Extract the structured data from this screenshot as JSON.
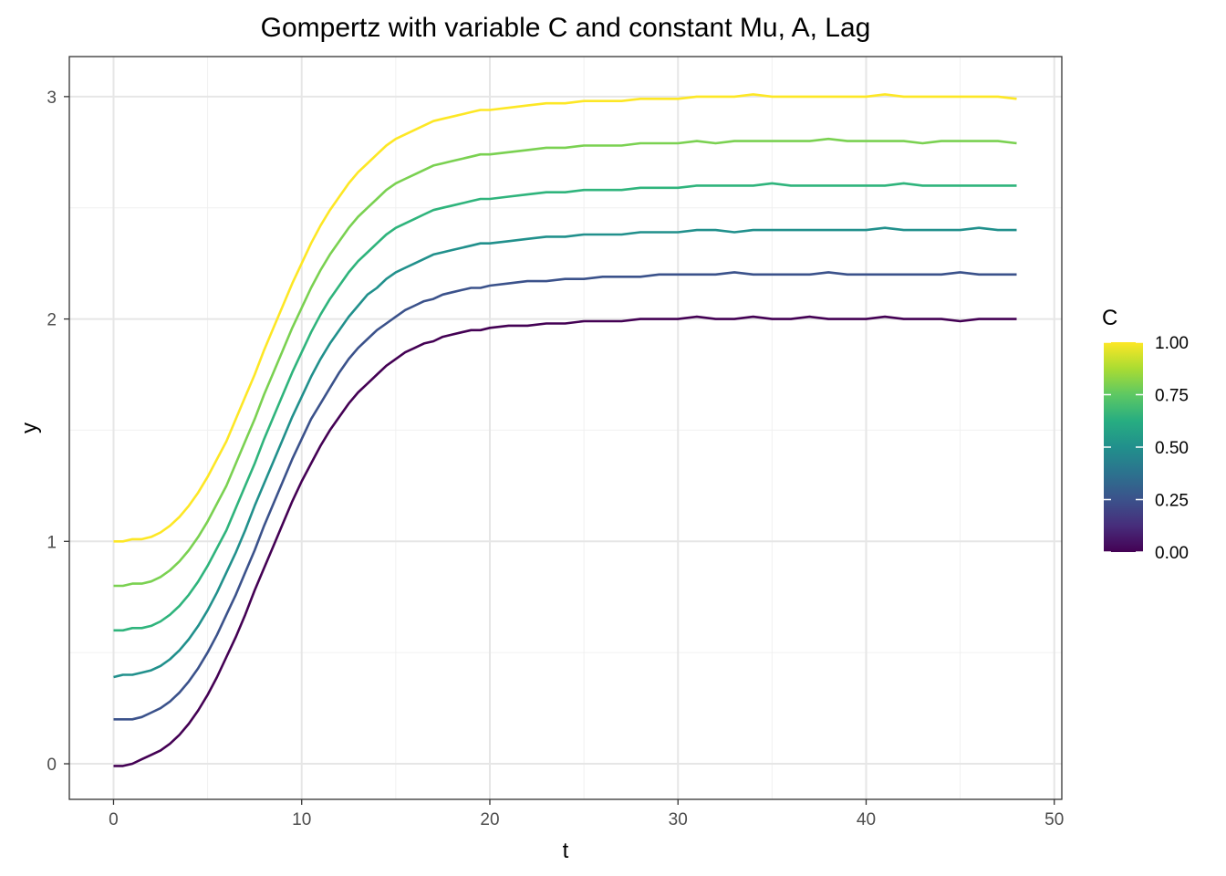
{
  "chart_data": {
    "type": "line",
    "title": "Gompertz with variable C and constant Mu, A, Lag",
    "xlabel": "t",
    "ylabel": "y",
    "xlim": [
      -2.35,
      50.4
    ],
    "ylim": [
      -0.16,
      3.18
    ],
    "x_ticks": [
      0,
      10,
      20,
      30,
      40,
      50
    ],
    "y_ticks": [
      0,
      1,
      2,
      3
    ],
    "grid": true,
    "legend": {
      "title": "C",
      "type": "colorbar",
      "position": "right",
      "ticks": [
        {
          "value": 0.0,
          "label": "0.00"
        },
        {
          "value": 0.25,
          "label": "0.25"
        },
        {
          "value": 0.5,
          "label": "0.50"
        },
        {
          "value": 0.75,
          "label": "0.75"
        },
        {
          "value": 1.0,
          "label": "1.00"
        }
      ],
      "colors": [
        "#440154",
        "#3b528b",
        "#21908c",
        "#5dc863",
        "#fde725"
      ]
    },
    "x": [
      0,
      0.5,
      1,
      1.5,
      2,
      2.5,
      3,
      3.5,
      4,
      4.5,
      5,
      5.5,
      6,
      6.5,
      7,
      7.5,
      8,
      8.5,
      9,
      9.5,
      10,
      10.5,
      11,
      11.5,
      12,
      12.5,
      13,
      13.5,
      14,
      14.5,
      15,
      15.5,
      16,
      16.5,
      17,
      17.5,
      18,
      18.5,
      19,
      19.5,
      20,
      21,
      22,
      23,
      24,
      25,
      26,
      27,
      28,
      29,
      30,
      31,
      32,
      33,
      34,
      35,
      36,
      37,
      38,
      39,
      40,
      41,
      42,
      43,
      44,
      45,
      46,
      47,
      48
    ],
    "series": [
      {
        "C": 0.0,
        "color": "#440154",
        "values": [
          -0.01,
          -0.01,
          0.0,
          0.02,
          0.04,
          0.06,
          0.09,
          0.13,
          0.18,
          0.24,
          0.31,
          0.39,
          0.48,
          0.57,
          0.67,
          0.78,
          0.88,
          0.98,
          1.08,
          1.18,
          1.27,
          1.35,
          1.43,
          1.5,
          1.56,
          1.62,
          1.67,
          1.71,
          1.75,
          1.79,
          1.82,
          1.85,
          1.87,
          1.89,
          1.9,
          1.92,
          1.93,
          1.94,
          1.95,
          1.95,
          1.96,
          1.97,
          1.97,
          1.98,
          1.98,
          1.99,
          1.99,
          1.99,
          2.0,
          2.0,
          2.0,
          2.01,
          2.0,
          2.0,
          2.01,
          2.0,
          2.0,
          2.01,
          2.0,
          2.0,
          2.0,
          2.01,
          2.0,
          2.0,
          2.0,
          1.99,
          2.0,
          2.0,
          2.0
        ]
      },
      {
        "C": 0.2,
        "color": "#3b528b",
        "values": [
          0.2,
          0.2,
          0.2,
          0.21,
          0.23,
          0.25,
          0.28,
          0.32,
          0.37,
          0.43,
          0.5,
          0.58,
          0.67,
          0.76,
          0.86,
          0.96,
          1.07,
          1.17,
          1.27,
          1.37,
          1.46,
          1.55,
          1.62,
          1.69,
          1.76,
          1.82,
          1.87,
          1.91,
          1.95,
          1.98,
          2.01,
          2.04,
          2.06,
          2.08,
          2.09,
          2.11,
          2.12,
          2.13,
          2.14,
          2.14,
          2.15,
          2.16,
          2.17,
          2.17,
          2.18,
          2.18,
          2.19,
          2.19,
          2.19,
          2.2,
          2.2,
          2.2,
          2.2,
          2.21,
          2.2,
          2.2,
          2.2,
          2.2,
          2.21,
          2.2,
          2.2,
          2.2,
          2.2,
          2.2,
          2.2,
          2.21,
          2.2,
          2.2,
          2.2
        ]
      },
      {
        "C": 0.4,
        "color": "#21908c",
        "values": [
          0.39,
          0.4,
          0.4,
          0.41,
          0.42,
          0.44,
          0.47,
          0.51,
          0.56,
          0.62,
          0.69,
          0.77,
          0.86,
          0.95,
          1.05,
          1.16,
          1.26,
          1.36,
          1.46,
          1.56,
          1.65,
          1.74,
          1.82,
          1.89,
          1.95,
          2.01,
          2.06,
          2.11,
          2.14,
          2.18,
          2.21,
          2.23,
          2.25,
          2.27,
          2.29,
          2.3,
          2.31,
          2.32,
          2.33,
          2.34,
          2.34,
          2.35,
          2.36,
          2.37,
          2.37,
          2.38,
          2.38,
          2.38,
          2.39,
          2.39,
          2.39,
          2.4,
          2.4,
          2.39,
          2.4,
          2.4,
          2.4,
          2.4,
          2.4,
          2.4,
          2.4,
          2.41,
          2.4,
          2.4,
          2.4,
          2.4,
          2.41,
          2.4,
          2.4
        ]
      },
      {
        "C": 0.6,
        "color": "#2fb47c",
        "values": [
          0.6,
          0.6,
          0.61,
          0.61,
          0.62,
          0.64,
          0.67,
          0.71,
          0.76,
          0.82,
          0.89,
          0.97,
          1.05,
          1.15,
          1.25,
          1.35,
          1.46,
          1.56,
          1.66,
          1.76,
          1.85,
          1.94,
          2.02,
          2.09,
          2.15,
          2.21,
          2.26,
          2.3,
          2.34,
          2.38,
          2.41,
          2.43,
          2.45,
          2.47,
          2.49,
          2.5,
          2.51,
          2.52,
          2.53,
          2.54,
          2.54,
          2.55,
          2.56,
          2.57,
          2.57,
          2.58,
          2.58,
          2.58,
          2.59,
          2.59,
          2.59,
          2.6,
          2.6,
          2.6,
          2.6,
          2.61,
          2.6,
          2.6,
          2.6,
          2.6,
          2.6,
          2.6,
          2.61,
          2.6,
          2.6,
          2.6,
          2.6,
          2.6,
          2.6
        ]
      },
      {
        "C": 0.8,
        "color": "#7ad151",
        "values": [
          0.8,
          0.8,
          0.81,
          0.81,
          0.82,
          0.84,
          0.87,
          0.91,
          0.96,
          1.02,
          1.09,
          1.17,
          1.25,
          1.35,
          1.45,
          1.55,
          1.66,
          1.76,
          1.86,
          1.96,
          2.05,
          2.14,
          2.22,
          2.29,
          2.35,
          2.41,
          2.46,
          2.5,
          2.54,
          2.58,
          2.61,
          2.63,
          2.65,
          2.67,
          2.69,
          2.7,
          2.71,
          2.72,
          2.73,
          2.74,
          2.74,
          2.75,
          2.76,
          2.77,
          2.77,
          2.78,
          2.78,
          2.78,
          2.79,
          2.79,
          2.79,
          2.8,
          2.79,
          2.8,
          2.8,
          2.8,
          2.8,
          2.8,
          2.81,
          2.8,
          2.8,
          2.8,
          2.8,
          2.79,
          2.8,
          2.8,
          2.8,
          2.8,
          2.79
        ]
      },
      {
        "C": 1.0,
        "color": "#fde725",
        "values": [
          1.0,
          1.0,
          1.01,
          1.01,
          1.02,
          1.04,
          1.07,
          1.11,
          1.16,
          1.22,
          1.29,
          1.37,
          1.45,
          1.55,
          1.65,
          1.75,
          1.86,
          1.96,
          2.06,
          2.16,
          2.25,
          2.34,
          2.42,
          2.49,
          2.55,
          2.61,
          2.66,
          2.7,
          2.74,
          2.78,
          2.81,
          2.83,
          2.85,
          2.87,
          2.89,
          2.9,
          2.91,
          2.92,
          2.93,
          2.94,
          2.94,
          2.95,
          2.96,
          2.97,
          2.97,
          2.98,
          2.98,
          2.98,
          2.99,
          2.99,
          2.99,
          3.0,
          3.0,
          3.0,
          3.01,
          3.0,
          3.0,
          3.0,
          3.0,
          3.0,
          3.0,
          3.01,
          3.0,
          3.0,
          3.0,
          3.0,
          3.0,
          3.0,
          2.99
        ]
      }
    ]
  }
}
